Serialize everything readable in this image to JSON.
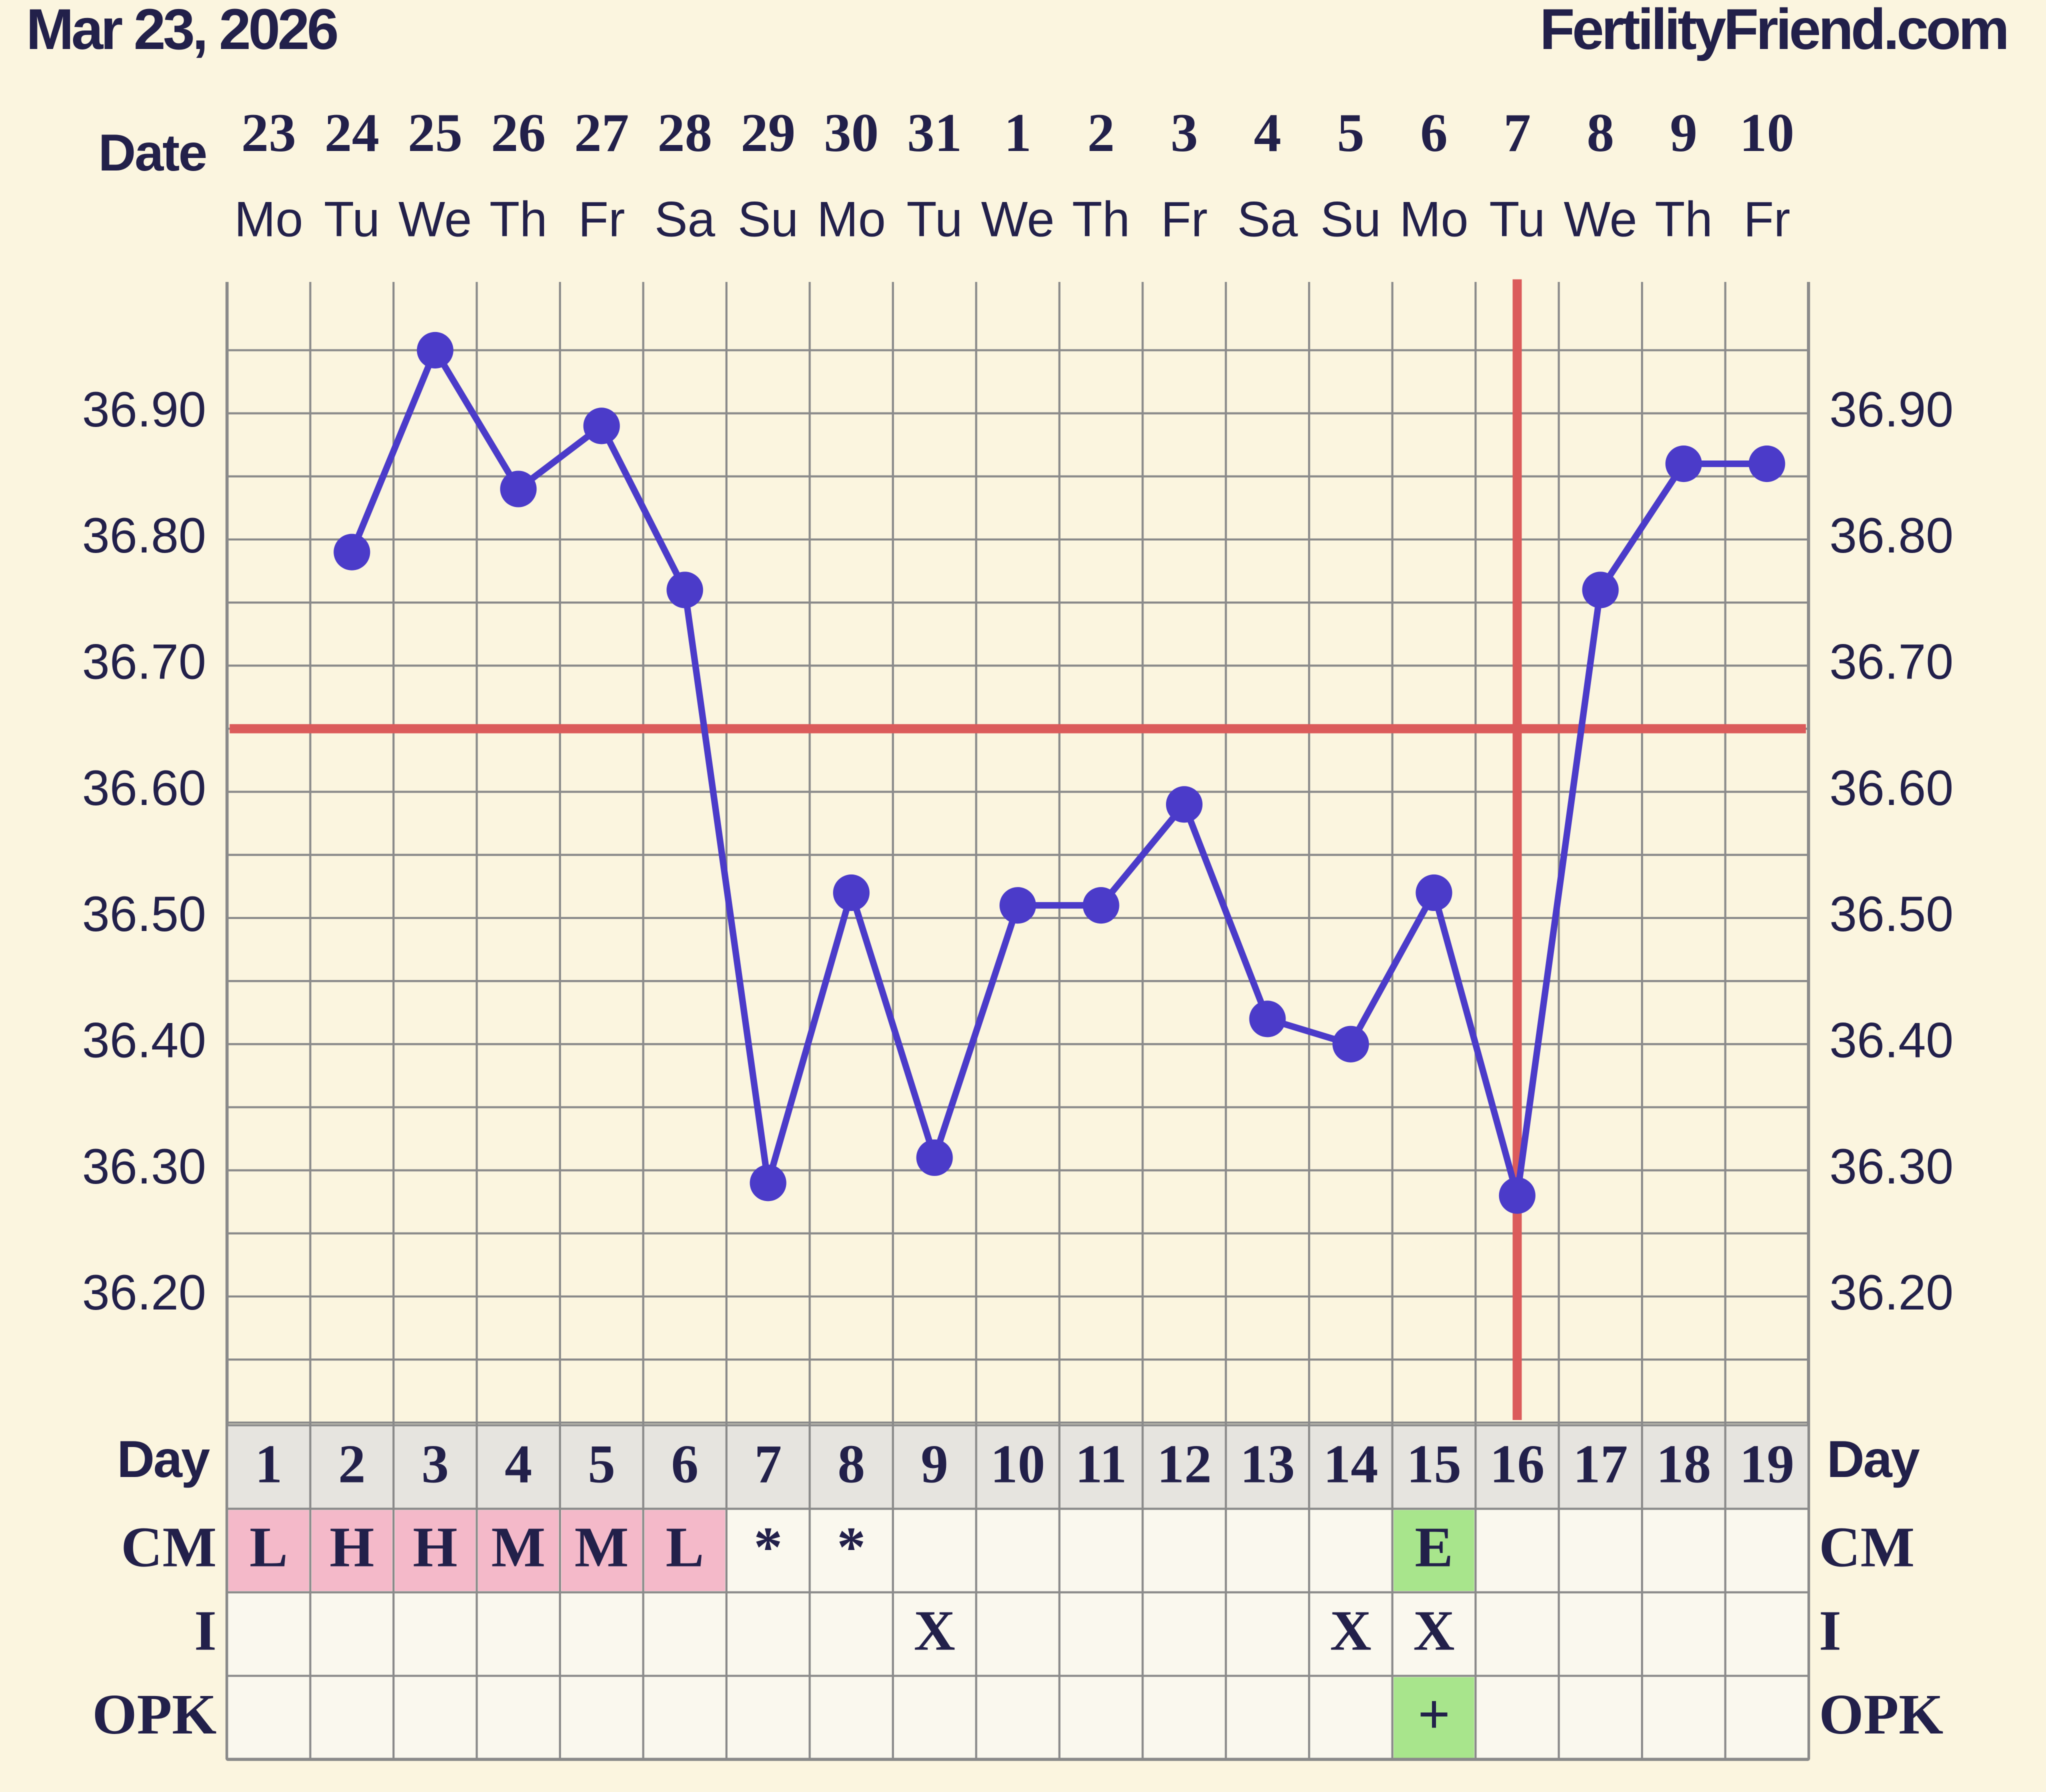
{
  "header": {
    "date": "Mar 23, 2026",
    "site": "FertilityFriend.com"
  },
  "chart_data": {
    "type": "line",
    "x_label": "Date",
    "categories": [
      "23",
      "24",
      "25",
      "26",
      "27",
      "28",
      "29",
      "30",
      "31",
      "1",
      "2",
      "3",
      "4",
      "5",
      "6",
      "7",
      "8",
      "9",
      "10"
    ],
    "weekdays": [
      "Mo",
      "Tu",
      "We",
      "Th",
      "Fr",
      "Sa",
      "Su",
      "Mo",
      "Tu",
      "We",
      "Th",
      "Fr",
      "Sa",
      "Su",
      "Mo",
      "Tu",
      "We",
      "Th",
      "Fr"
    ],
    "values": [
      null,
      36.79,
      36.95,
      36.84,
      36.89,
      36.76,
      36.29,
      36.52,
      36.31,
      36.51,
      36.51,
      36.59,
      36.42,
      36.4,
      36.52,
      36.28,
      36.76,
      36.86,
      36.86
    ],
    "color": "#4b3bc9",
    "ylim": [
      36.1,
      37.0
    ],
    "yticks": [
      {
        "value": 36.2,
        "label": "36.20"
      },
      {
        "value": 36.3,
        "label": "36.30"
      },
      {
        "value": 36.4,
        "label": "36.40"
      },
      {
        "value": 36.5,
        "label": "36.50"
      },
      {
        "value": 36.6,
        "label": "36.60"
      },
      {
        "value": 36.7,
        "label": "36.70"
      },
      {
        "value": 36.8,
        "label": "36.80"
      },
      {
        "value": 36.9,
        "label": "36.90"
      }
    ],
    "minor_yticks": [
      36.15,
      36.25,
      36.35,
      36.45,
      36.55,
      36.65,
      36.75,
      36.85,
      36.95
    ],
    "grid": true,
    "coverline": 36.65,
    "ovulation_day": 16,
    "marker_line_color": "#db5b5b",
    "day_label": "Day",
    "days": [
      1,
      2,
      3,
      4,
      5,
      6,
      7,
      8,
      9,
      10,
      11,
      12,
      13,
      14,
      15,
      16,
      17,
      18,
      19
    ],
    "rows": [
      {
        "label": "CM",
        "values": [
          "L",
          "H",
          "H",
          "M",
          "M",
          "L",
          "*",
          "*",
          null,
          null,
          null,
          null,
          null,
          null,
          "E",
          null,
          null,
          null,
          null
        ],
        "colors": [
          "#f4b9c9",
          "#f4b9c9",
          "#f4b9c9",
          "#f4b9c9",
          "#f4b9c9",
          "#f4b9c9",
          null,
          null,
          null,
          null,
          null,
          null,
          null,
          null,
          "#a8e58c",
          null,
          null,
          null,
          null
        ]
      },
      {
        "label": "I",
        "values": [
          null,
          null,
          null,
          null,
          null,
          null,
          null,
          null,
          "X",
          null,
          null,
          null,
          null,
          "X",
          "X",
          null,
          null,
          null,
          null
        ],
        "colors": [
          null,
          null,
          null,
          null,
          null,
          null,
          null,
          null,
          null,
          null,
          null,
          null,
          null,
          null,
          null,
          null,
          null,
          null,
          null
        ]
      },
      {
        "label": "OPK",
        "values": [
          null,
          null,
          null,
          null,
          null,
          null,
          null,
          null,
          null,
          null,
          null,
          null,
          null,
          null,
          "+",
          null,
          null,
          null,
          null
        ],
        "colors": [
          null,
          null,
          null,
          null,
          null,
          null,
          null,
          null,
          null,
          null,
          null,
          null,
          null,
          null,
          "#a8e58c",
          null,
          null,
          null,
          null
        ]
      }
    ]
  }
}
